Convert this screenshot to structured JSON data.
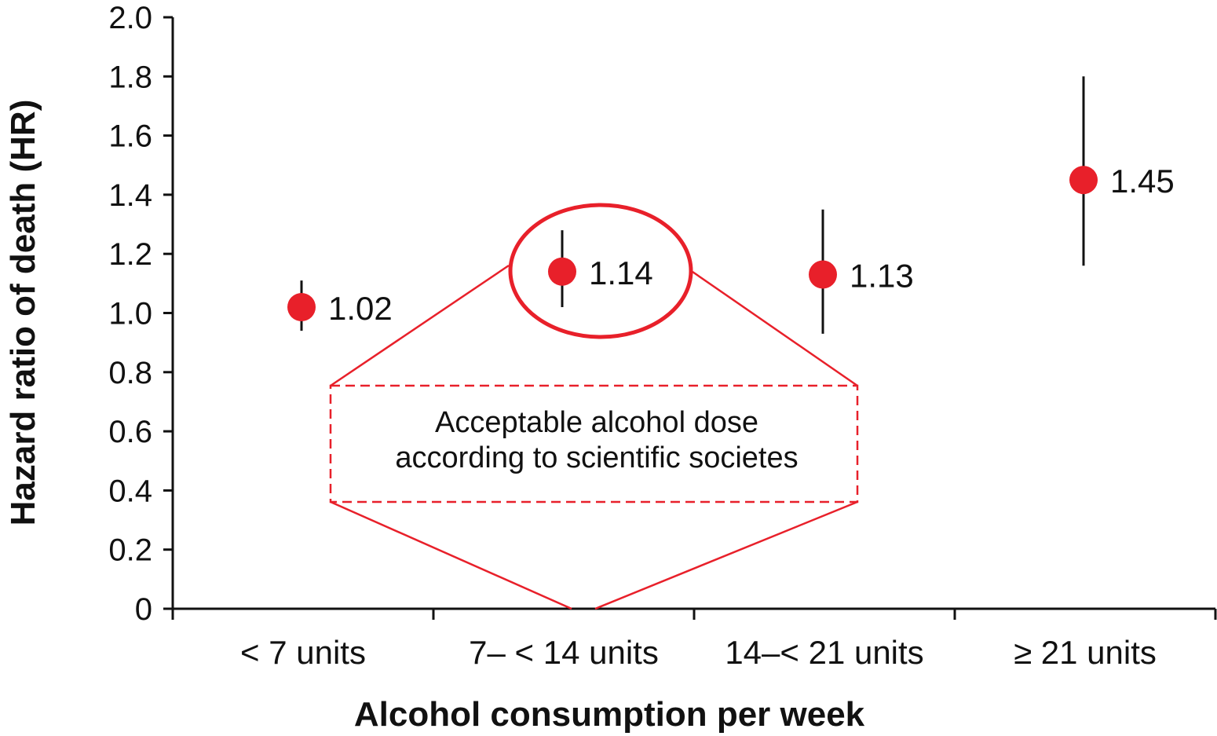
{
  "chart_data": {
    "type": "scatter",
    "title": "",
    "xlabel": "Alcohol consumption per week",
    "ylabel": "Hazard ratio of death (HR)",
    "ylim": [
      0,
      2.0
    ],
    "yticks": [
      "0",
      "0.2",
      "0.4",
      "0.6",
      "0.8",
      "1.0",
      "1.2",
      "1.4",
      "1.6",
      "1.8",
      "2.0"
    ],
    "categories": [
      "< 7 units",
      "7– < 14 units",
      "14–< 21 units",
      "≥ 21 units"
    ],
    "values": [
      1.02,
      1.14,
      1.13,
      1.45
    ],
    "value_labels": [
      "1.02",
      "1.14",
      "1.13",
      "1.45"
    ],
    "ci_lower": [
      0.94,
      1.02,
      0.93,
      1.16
    ],
    "ci_upper": [
      1.11,
      1.28,
      1.35,
      1.8
    ],
    "highlighted_category": "7– < 14 units",
    "annotation": {
      "line1": "Acceptable alcohol dose",
      "line2": "according to scientific societes"
    },
    "grid": false,
    "colors": {
      "point": "#e8202a",
      "annotation": "#e8202a",
      "axis": "#111111"
    }
  }
}
